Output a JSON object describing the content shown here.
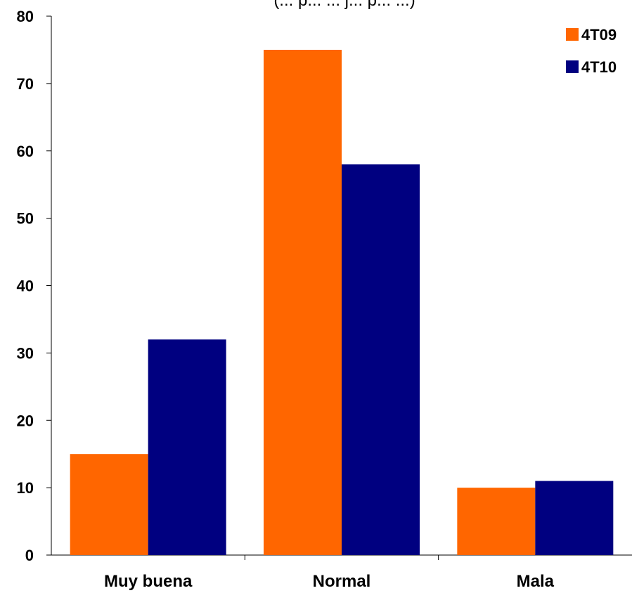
{
  "chart_data": {
    "type": "bar",
    "title": "",
    "title_partial": "(... p... ... j... p... ...)",
    "categories": [
      "Muy buena",
      "Normal",
      "Mala"
    ],
    "series": [
      {
        "name": "4T09",
        "color": "#FF6600",
        "values": [
          15,
          75,
          10
        ]
      },
      {
        "name": "4T10",
        "color": "#000080",
        "values": [
          32,
          58,
          11
        ]
      }
    ],
    "xlabel": "",
    "ylabel": "",
    "ylim": [
      0,
      80
    ],
    "yticks": [
      "0",
      "10",
      "20",
      "30",
      "40",
      "50",
      "60",
      "70",
      "80"
    ],
    "grid": false,
    "legend_position": "top-right"
  }
}
